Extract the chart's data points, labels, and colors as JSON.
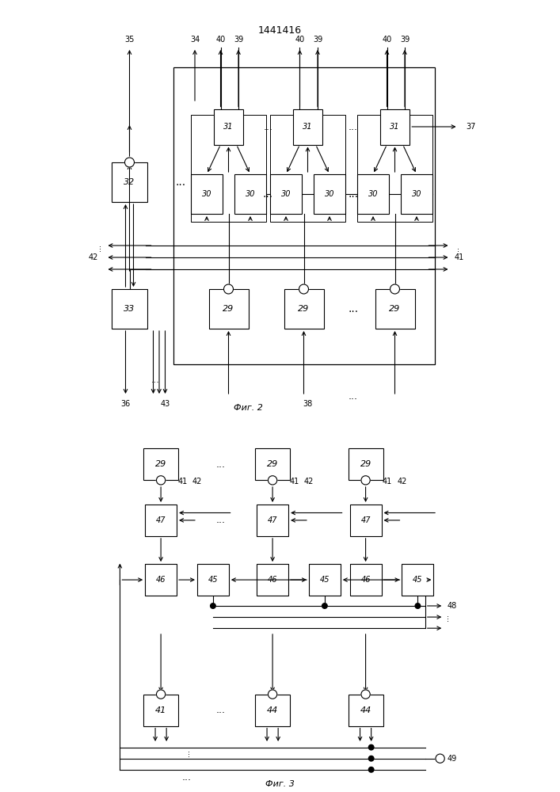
{
  "title": "1441416",
  "fig2_label": "Фиг. 2",
  "fig3_label": "Фиг. 3",
  "bg_color": "#ffffff",
  "line_color": "#000000",
  "font_size": 8
}
